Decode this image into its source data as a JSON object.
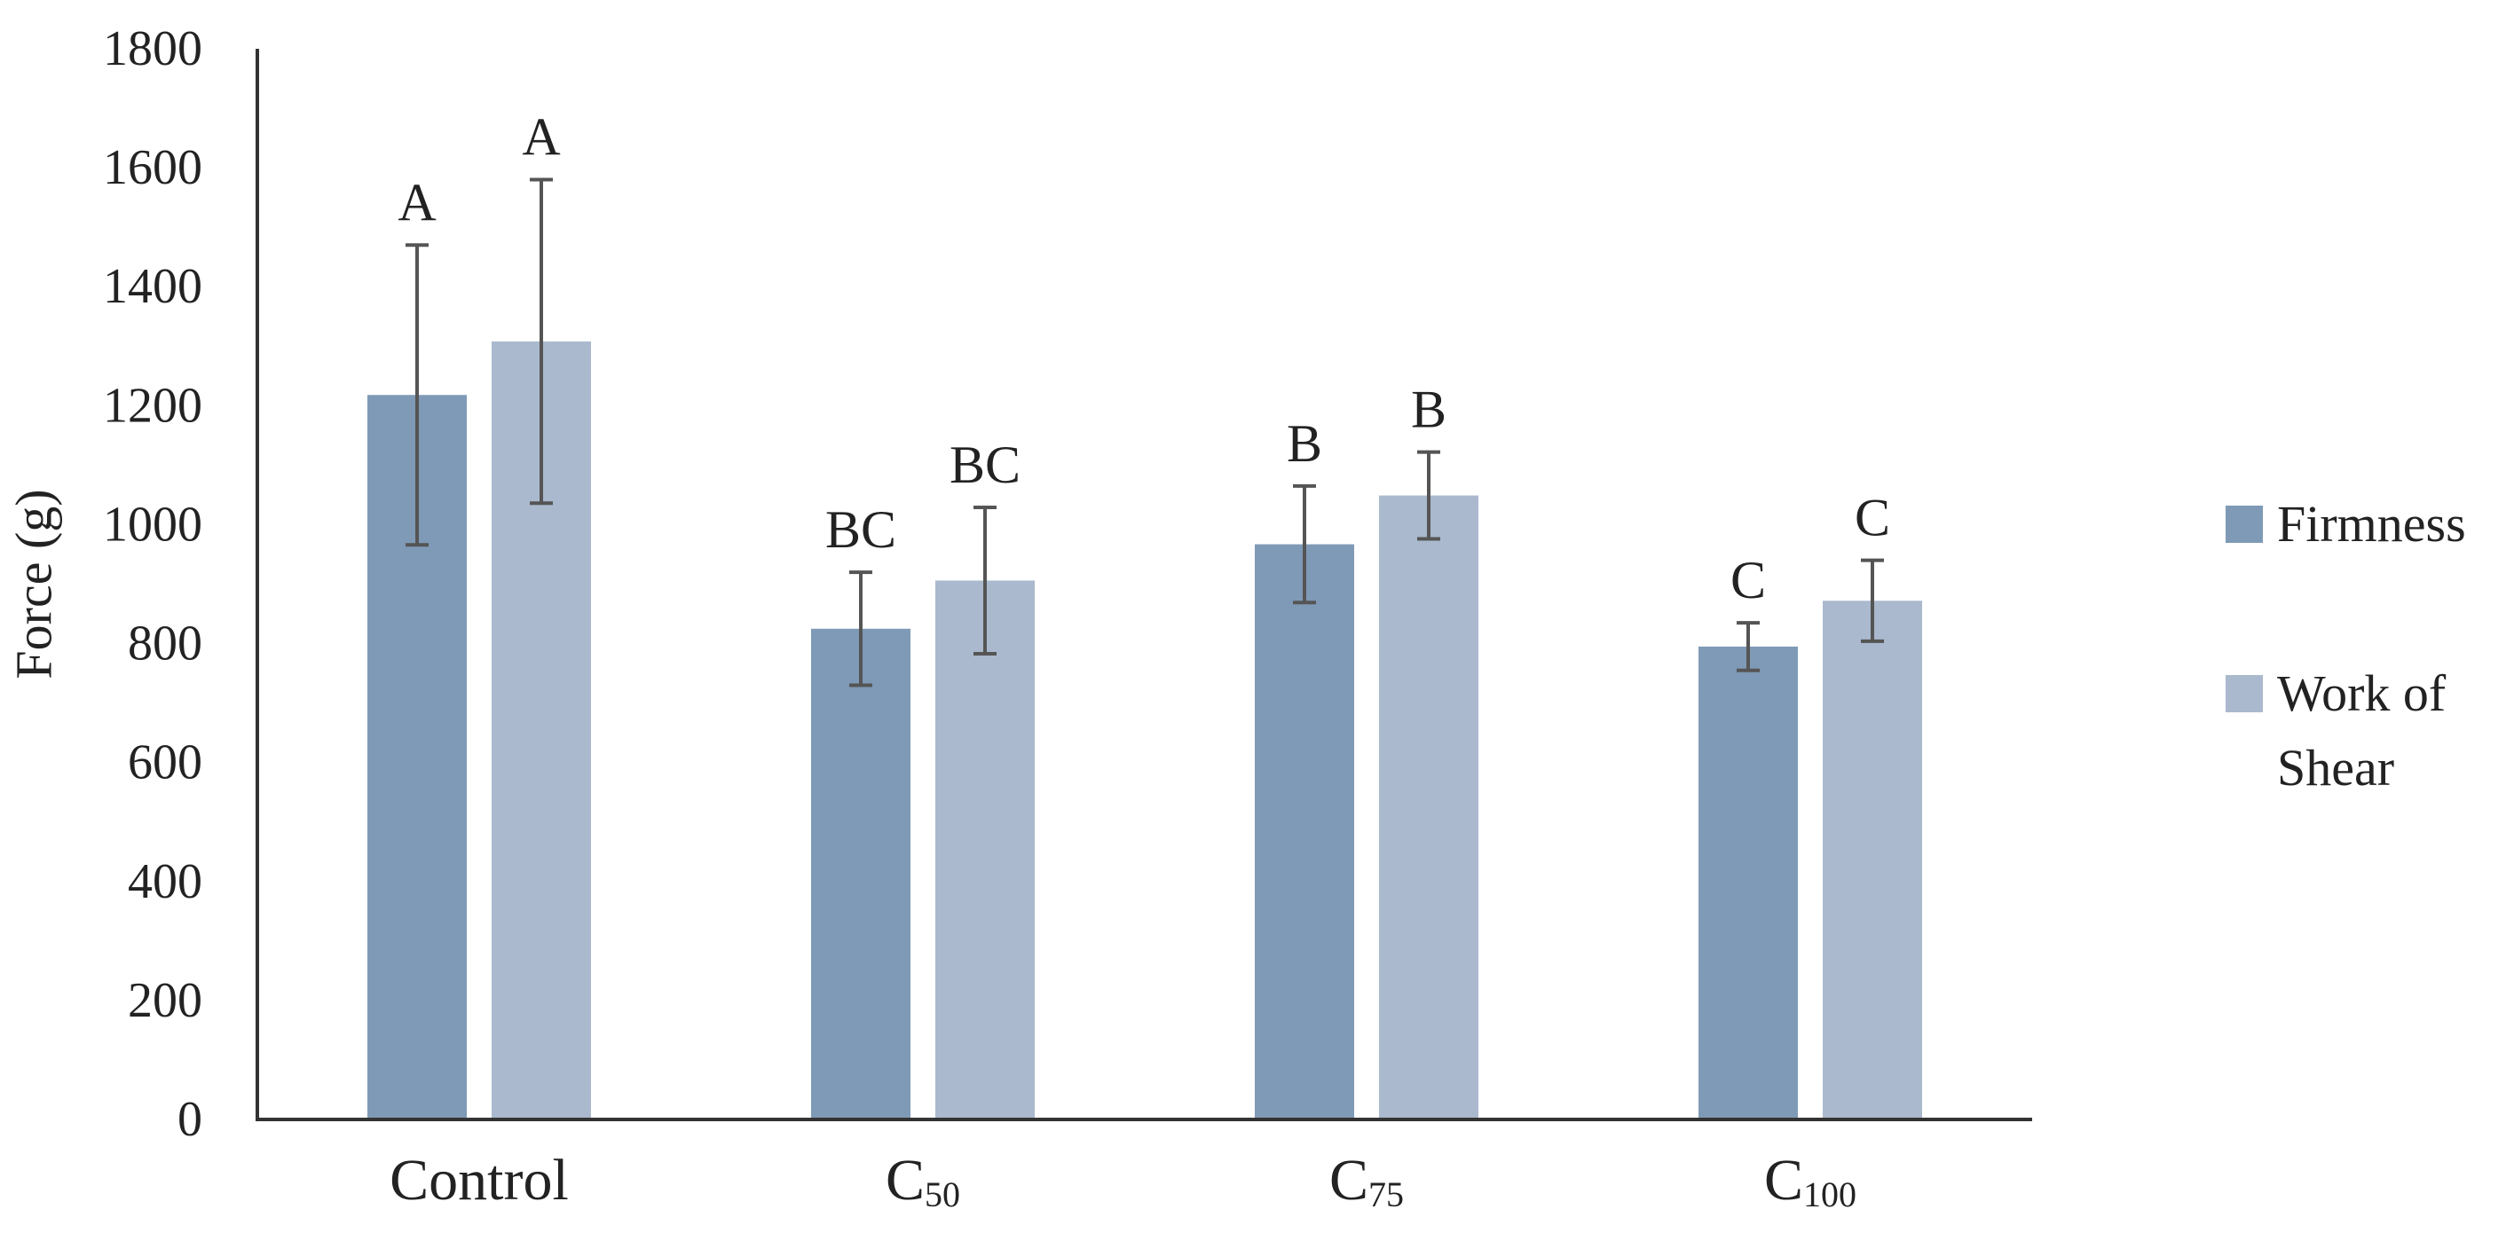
{
  "chart_data": {
    "type": "bar",
    "title": "",
    "xlabel": "",
    "ylabel": "Force (g)",
    "ylim": [
      0,
      1800
    ],
    "yticks": [
      0,
      200,
      400,
      600,
      800,
      1000,
      1200,
      1400,
      1600,
      1800
    ],
    "grid": false,
    "legend_position": "right",
    "categories": [
      {
        "main": "Control",
        "sub": ""
      },
      {
        "main": "C",
        "sub": "50"
      },
      {
        "main": "C",
        "sub": "75"
      },
      {
        "main": "C",
        "sub": "100"
      }
    ],
    "series": [
      {
        "name": "Firmness",
        "legend_lines": [
          "Firmness"
        ],
        "color": "#7f9ab6",
        "values": [
          1218,
          825,
          967,
          795
        ],
        "errors": [
          252,
          95,
          98,
          40
        ],
        "letters": [
          "A",
          "BC",
          "B",
          "C"
        ]
      },
      {
        "name": "Work of Shear",
        "legend_lines": [
          "Work of",
          "Shear"
        ],
        "color": "#aab9cd",
        "values": [
          1308,
          906,
          1049,
          872
        ],
        "errors": [
          272,
          123,
          73,
          68
        ],
        "letters": [
          "A",
          "BC",
          "B",
          "C"
        ]
      }
    ],
    "axis_color": "#333333",
    "error_bar_color": "#555555"
  }
}
